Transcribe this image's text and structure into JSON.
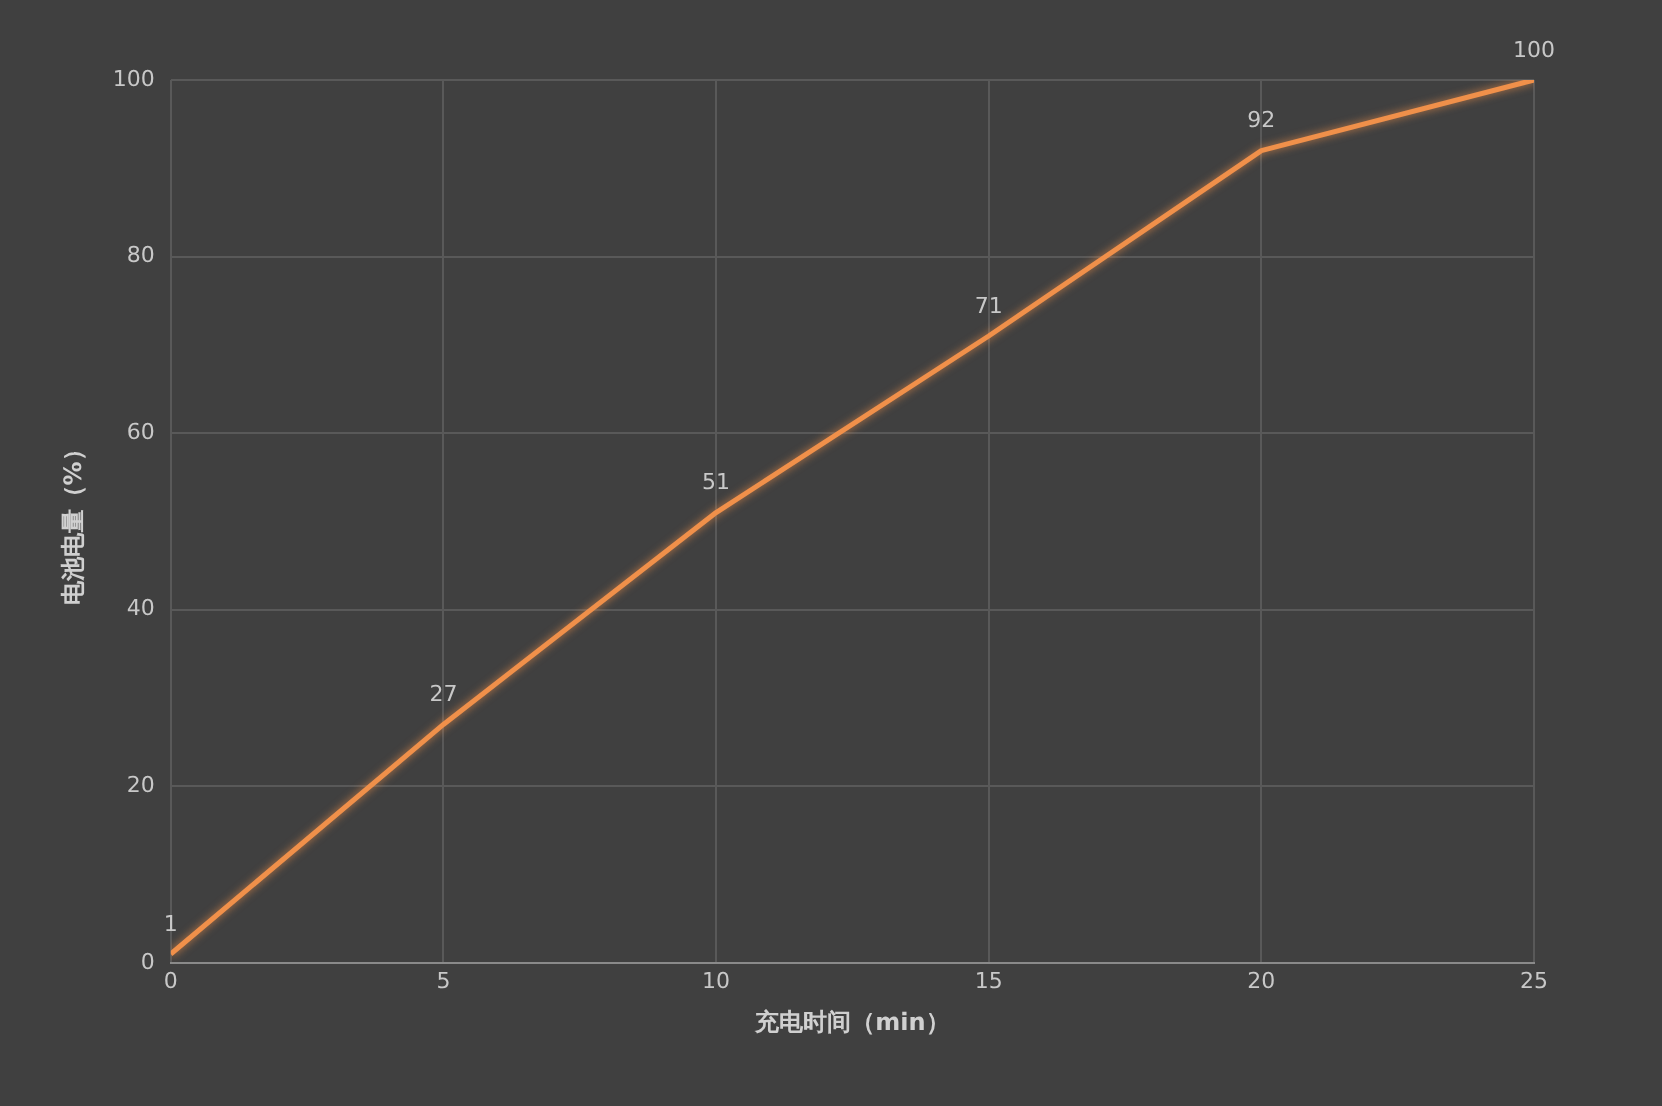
{
  "chart_data": {
    "type": "line",
    "xlabel": "充电时间（min）",
    "ylabel": "电池电量（%）",
    "x": [
      0,
      5,
      10,
      15,
      20,
      25
    ],
    "series": [
      {
        "color": "#f0904a",
        "values": [
          1,
          27,
          51,
          71,
          92,
          100
        ]
      }
    ],
    "xlim": [
      0,
      25
    ],
    "xticks": [
      0,
      5,
      10,
      15,
      20,
      25
    ],
    "ylim": [
      0,
      100
    ],
    "yticks": [
      0,
      20,
      40,
      60,
      80,
      100
    ],
    "grid": true,
    "legend": false,
    "marker": "none",
    "data_labels": true
  }
}
